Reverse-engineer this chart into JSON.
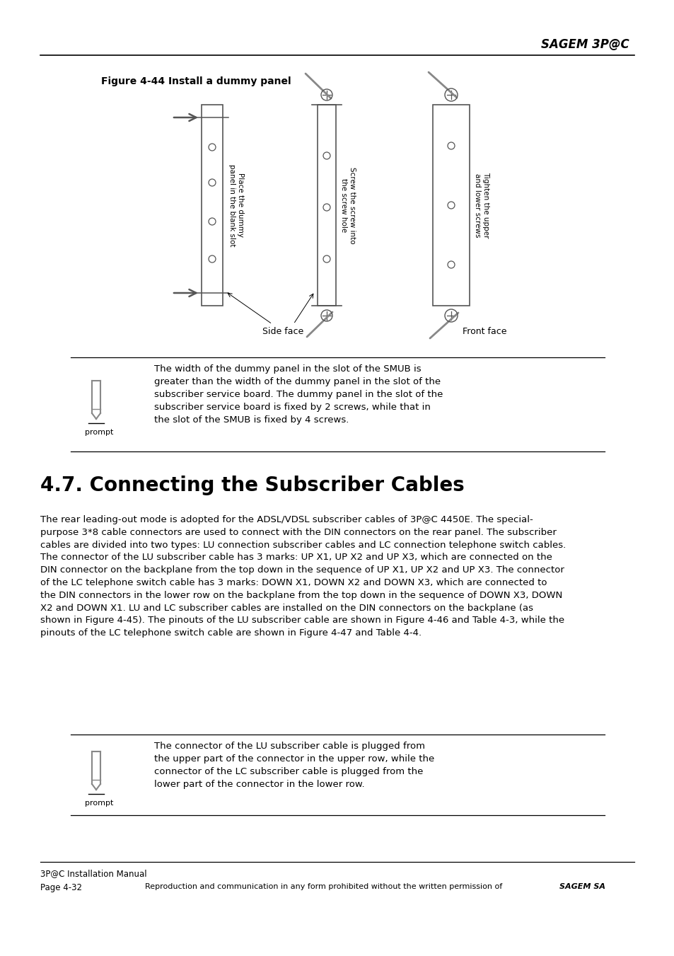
{
  "bg_color": "#ffffff",
  "header_title": "SAGEM 3P@C",
  "figure_caption": "Figure 4-44 Install a dummy panel",
  "note_text_1": "The width of the dummy panel in the slot of the SMUB is\ngreater than the width of the dummy panel in the slot of the\nsubscriber service board. The dummy panel in the slot of the\nsubscriber service board is fixed by 2 screws, while that in\nthe slot of the SMUB is fixed by 4 screws.",
  "section_heading": "4.7. Connecting the Subscriber Cables",
  "body_text": "The rear leading-out mode is adopted for the ADSL/VDSL subscriber cables of 3P@C 4450E. The special-\npurpose 3*8 cable connectors are used to connect with the DIN connectors on the rear panel. The subscriber\ncables are divided into two types: LU connection subscriber cables and LC connection telephone switch cables.\nThe connector of the LU subscriber cable has 3 marks: UP X1, UP X2 and UP X3, which are connected on the\nDIN connector on the backplane from the top down in the sequence of UP X1, UP X2 and UP X3. The connector\nof the LC telephone switch cable has 3 marks: DOWN X1, DOWN X2 and DOWN X3, which are connected to\nthe DIN connectors in the lower row on the backplane from the top down in the sequence of DOWN X3, DOWN\nX2 and DOWN X1. LU and LC subscriber cables are installed on the DIN connectors on the backplane (as\nshown in Figure 4-45). The pinouts of the LU subscriber cable are shown in Figure 4-46 and Table 4-3, while the\npinouts of the LC telephone switch cable are shown in Figure 4-47 and Table 4-4.",
  "note_text_2": "The connector of the LU subscriber cable is plugged from\nthe upper part of the connector in the upper row, while the\nconnector of the LC subscriber cable is plugged from the\nlower part of the connector in the lower row.",
  "footer_left_top": "3P@C Installation Manual",
  "footer_left_bottom": "Page 4-32",
  "footer_right_normal": "Reproduction and communication in any form prohibited without the written permission of ",
  "footer_right_bold": "SAGEM SA",
  "prompt_label": "prompt",
  "side_face_label": "Side face",
  "front_face_label": "Front face",
  "panel_label_1": "Place the dummy\npanel in the blank slot",
  "panel_label_2": "Screw the screw into\nthe screw hole",
  "panel_label_3": "Tighten the upper\nand lower screws",
  "gray": "#555555",
  "lgray": "#888888"
}
